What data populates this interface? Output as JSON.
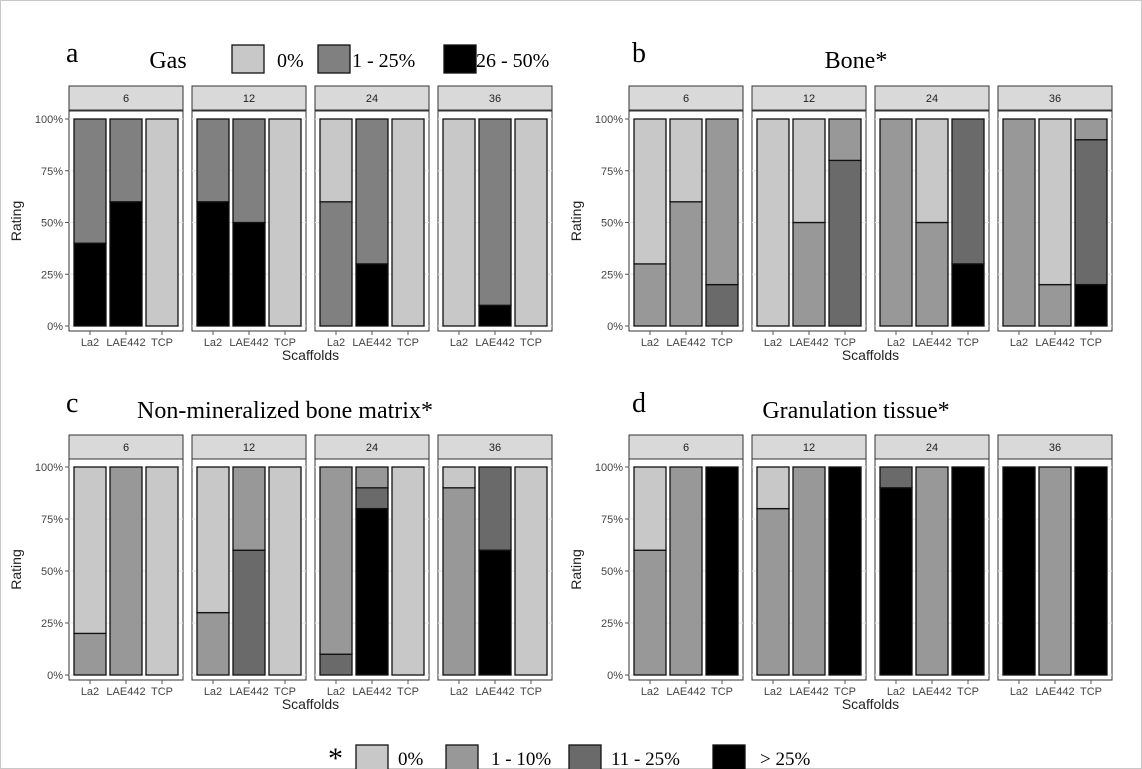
{
  "colors": {
    "c0": "#c8c8c8",
    "c1": "#989898",
    "c2": "#6a6a6a",
    "c3": "#000000",
    "c_gas1": "#808080",
    "strip": "#d9d9d9"
  },
  "shared": {
    "ylabel": "Rating",
    "xlabel": "Scaffolds",
    "yticks": [
      "0%",
      "25%",
      "50%",
      "75%",
      "100%"
    ],
    "scaffolds": [
      "La2",
      "LAE442",
      "TCP"
    ],
    "facets": [
      "6",
      "12",
      "24",
      "36"
    ]
  },
  "legend_top": {
    "entries": [
      "0%",
      "1 - 25%",
      "26 - 50%"
    ]
  },
  "legend_bottom": {
    "star": "*",
    "entries": [
      "0%",
      "1 - 10%",
      "11 - 25%",
      "> 25%"
    ]
  },
  "chart_data": [
    {
      "type": "bar",
      "stacked": true,
      "letter": "a",
      "title": "Gas",
      "xlabel": "Scaffolds",
      "ylabel": "Rating",
      "ylim": [
        0,
        100
      ],
      "levels": [
        "0%",
        "1 - 25%",
        "26 - 50%"
      ],
      "level_colors": [
        "#c8c8c8",
        "#808080",
        "#000000"
      ],
      "facets": [
        {
          "label": "6",
          "bars": [
            {
              "scaffold": "La2",
              "segments": [
                0,
                60,
                40
              ]
            },
            {
              "scaffold": "LAE442",
              "segments": [
                0,
                40,
                60
              ]
            },
            {
              "scaffold": "TCP",
              "segments": [
                100,
                0,
                0
              ]
            }
          ]
        },
        {
          "label": "12",
          "bars": [
            {
              "scaffold": "La2",
              "segments": [
                0,
                40,
                60
              ]
            },
            {
              "scaffold": "LAE442",
              "segments": [
                0,
                50,
                50
              ]
            },
            {
              "scaffold": "TCP",
              "segments": [
                100,
                0,
                0
              ]
            }
          ]
        },
        {
          "label": "24",
          "bars": [
            {
              "scaffold": "La2",
              "segments": [
                40,
                60,
                0
              ]
            },
            {
              "scaffold": "LAE442",
              "segments": [
                0,
                70,
                30
              ]
            },
            {
              "scaffold": "TCP",
              "segments": [
                100,
                0,
                0
              ]
            }
          ]
        },
        {
          "label": "36",
          "bars": [
            {
              "scaffold": "La2",
              "segments": [
                100,
                0,
                0
              ]
            },
            {
              "scaffold": "LAE442",
              "segments": [
                0,
                90,
                10
              ]
            },
            {
              "scaffold": "TCP",
              "segments": [
                100,
                0,
                0
              ]
            }
          ]
        }
      ]
    },
    {
      "type": "bar",
      "stacked": true,
      "letter": "b",
      "title": "Bone*",
      "xlabel": "Scaffolds",
      "ylabel": "Rating",
      "ylim": [
        0,
        100
      ],
      "levels": [
        "0%",
        "1 - 10%",
        "11 - 25%",
        "> 25%"
      ],
      "level_colors": [
        "#c8c8c8",
        "#989898",
        "#6a6a6a",
        "#000000"
      ],
      "facets": [
        {
          "label": "6",
          "bars": [
            {
              "scaffold": "La2",
              "segments": [
                70,
                30,
                0,
                0
              ]
            },
            {
              "scaffold": "LAE442",
              "segments": [
                40,
                60,
                0,
                0
              ]
            },
            {
              "scaffold": "TCP",
              "segments": [
                0,
                80,
                20,
                0
              ]
            }
          ]
        },
        {
          "label": "12",
          "bars": [
            {
              "scaffold": "La2",
              "segments": [
                100,
                0,
                0,
                0
              ]
            },
            {
              "scaffold": "LAE442",
              "segments": [
                50,
                50,
                0,
                0
              ]
            },
            {
              "scaffold": "TCP",
              "segments": [
                0,
                20,
                80,
                0
              ]
            }
          ]
        },
        {
          "label": "24",
          "bars": [
            {
              "scaffold": "La2",
              "segments": [
                0,
                100,
                0,
                0
              ]
            },
            {
              "scaffold": "LAE442",
              "segments": [
                50,
                50,
                0,
                0
              ]
            },
            {
              "scaffold": "TCP",
              "segments": [
                0,
                0,
                70,
                30
              ]
            }
          ]
        },
        {
          "label": "36",
          "bars": [
            {
              "scaffold": "La2",
              "segments": [
                0,
                100,
                0,
                0
              ]
            },
            {
              "scaffold": "LAE442",
              "segments": [
                80,
                20,
                0,
                0
              ]
            },
            {
              "scaffold": "TCP",
              "segments": [
                0,
                10,
                70,
                20
              ]
            }
          ]
        }
      ]
    },
    {
      "type": "bar",
      "stacked": true,
      "letter": "c",
      "title": "Non-mineralized bone matrix*",
      "xlabel": "Scaffolds",
      "ylabel": "Rating",
      "ylim": [
        0,
        100
      ],
      "levels": [
        "0%",
        "1 - 10%",
        "11 - 25%",
        "> 25%"
      ],
      "level_colors": [
        "#c8c8c8",
        "#989898",
        "#6a6a6a",
        "#000000"
      ],
      "facets": [
        {
          "label": "6",
          "bars": [
            {
              "scaffold": "La2",
              "segments": [
                80,
                20,
                0,
                0
              ]
            },
            {
              "scaffold": "LAE442",
              "segments": [
                0,
                100,
                0,
                0
              ]
            },
            {
              "scaffold": "TCP",
              "segments": [
                100,
                0,
                0,
                0
              ]
            }
          ]
        },
        {
          "label": "12",
          "bars": [
            {
              "scaffold": "La2",
              "segments": [
                70,
                30,
                0,
                0
              ]
            },
            {
              "scaffold": "LAE442",
              "segments": [
                0,
                40,
                60,
                0
              ]
            },
            {
              "scaffold": "TCP",
              "segments": [
                100,
                0,
                0,
                0
              ]
            }
          ]
        },
        {
          "label": "24",
          "bars": [
            {
              "scaffold": "La2",
              "segments": [
                0,
                90,
                10,
                0
              ]
            },
            {
              "scaffold": "LAE442",
              "segments": [
                0,
                10,
                10,
                80
              ]
            },
            {
              "scaffold": "TCP",
              "segments": [
                100,
                0,
                0,
                0
              ]
            }
          ]
        },
        {
          "label": "36",
          "bars": [
            {
              "scaffold": "La2",
              "segments": [
                10,
                90,
                0,
                0
              ]
            },
            {
              "scaffold": "LAE442",
              "segments": [
                0,
                0,
                40,
                60
              ]
            },
            {
              "scaffold": "TCP",
              "segments": [
                100,
                0,
                0,
                0
              ]
            }
          ]
        }
      ]
    },
    {
      "type": "bar",
      "stacked": true,
      "letter": "d",
      "title": "Granulation tissue*",
      "xlabel": "Scaffolds",
      "ylabel": "Rating",
      "ylim": [
        0,
        100
      ],
      "levels": [
        "0%",
        "1 - 10%",
        "11 - 25%",
        "> 25%"
      ],
      "level_colors": [
        "#c8c8c8",
        "#989898",
        "#6a6a6a",
        "#000000"
      ],
      "facets": [
        {
          "label": "6",
          "bars": [
            {
              "scaffold": "La2",
              "segments": [
                40,
                60,
                0,
                0
              ]
            },
            {
              "scaffold": "LAE442",
              "segments": [
                0,
                100,
                0,
                0
              ]
            },
            {
              "scaffold": "TCP",
              "segments": [
                0,
                0,
                0,
                100
              ]
            }
          ]
        },
        {
          "label": "12",
          "bars": [
            {
              "scaffold": "La2",
              "segments": [
                20,
                80,
                0,
                0
              ]
            },
            {
              "scaffold": "LAE442",
              "segments": [
                0,
                100,
                0,
                0
              ]
            },
            {
              "scaffold": "TCP",
              "segments": [
                0,
                0,
                0,
                100
              ]
            }
          ]
        },
        {
          "label": "24",
          "bars": [
            {
              "scaffold": "La2",
              "segments": [
                0,
                0,
                10,
                90
              ]
            },
            {
              "scaffold": "LAE442",
              "segments": [
                0,
                100,
                0,
                0
              ]
            },
            {
              "scaffold": "TCP",
              "segments": [
                0,
                0,
                0,
                100
              ]
            }
          ]
        },
        {
          "label": "36",
          "bars": [
            {
              "scaffold": "La2",
              "segments": [
                0,
                0,
                0,
                100
              ]
            },
            {
              "scaffold": "LAE442",
              "segments": [
                0,
                100,
                0,
                0
              ]
            },
            {
              "scaffold": "TCP",
              "segments": [
                0,
                0,
                0,
                100
              ]
            }
          ]
        }
      ]
    }
  ]
}
